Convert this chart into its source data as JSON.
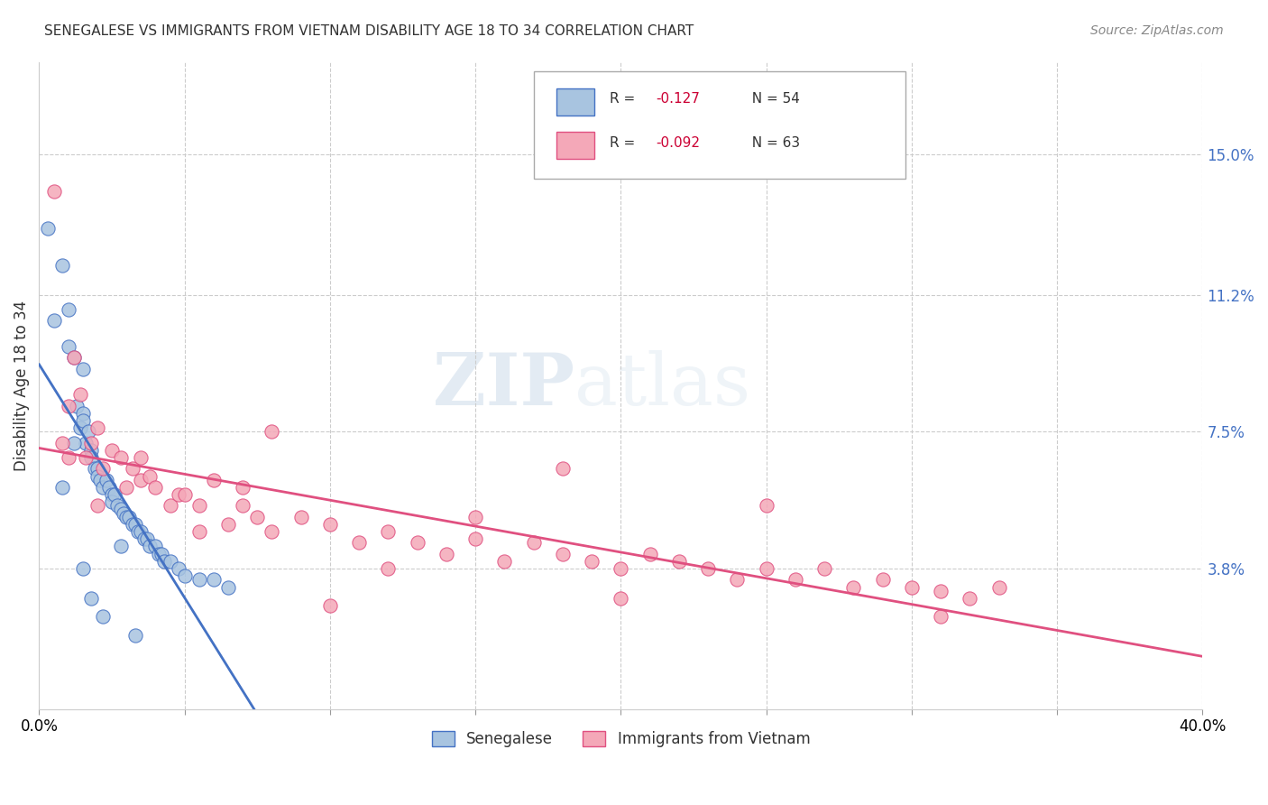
{
  "title": "SENEGALESE VS IMMIGRANTS FROM VIETNAM DISABILITY AGE 18 TO 34 CORRELATION CHART",
  "source": "Source: ZipAtlas.com",
  "ylabel": "Disability Age 18 to 34",
  "xlim": [
    0.0,
    0.4
  ],
  "ylim": [
    0.0,
    0.175
  ],
  "xtick_positions": [
    0.0,
    0.05,
    0.1,
    0.15,
    0.2,
    0.25,
    0.3,
    0.35,
    0.4
  ],
  "xticklabels": [
    "0.0%",
    "",
    "",
    "",
    "",
    "",
    "",
    "",
    "40.0%"
  ],
  "ytick_positions": [
    0.038,
    0.075,
    0.112,
    0.15
  ],
  "ytick_labels": [
    "3.8%",
    "7.5%",
    "11.2%",
    "15.0%"
  ],
  "legend_labels": [
    "Senegalese",
    "Immigrants from Vietnam"
  ],
  "legend_r1": "R =  -0.127",
  "legend_n1": "N = 54",
  "legend_r2": "R =  -0.092",
  "legend_n2": "N = 63",
  "color_blue": "#a8c4e0",
  "color_pink": "#f4a8b8",
  "line_blue": "#4472c4",
  "line_pink": "#e05080",
  "line_dash": "#b0c8e0",
  "watermark_zip": "ZIP",
  "watermark_atlas": "atlas",
  "senegalese_x": [
    0.003,
    0.005,
    0.008,
    0.01,
    0.01,
    0.012,
    0.013,
    0.014,
    0.015,
    0.015,
    0.016,
    0.017,
    0.018,
    0.018,
    0.019,
    0.02,
    0.02,
    0.021,
    0.022,
    0.023,
    0.024,
    0.025,
    0.025,
    0.026,
    0.027,
    0.028,
    0.029,
    0.03,
    0.031,
    0.032,
    0.033,
    0.034,
    0.035,
    0.036,
    0.037,
    0.038,
    0.04,
    0.041,
    0.042,
    0.043,
    0.045,
    0.048,
    0.05,
    0.055,
    0.06,
    0.065,
    0.008,
    0.012,
    0.015,
    0.018,
    0.022,
    0.028,
    0.033,
    0.015
  ],
  "senegalese_y": [
    0.13,
    0.105,
    0.12,
    0.108,
    0.098,
    0.095,
    0.082,
    0.076,
    0.08,
    0.078,
    0.072,
    0.075,
    0.07,
    0.068,
    0.065,
    0.065,
    0.063,
    0.062,
    0.06,
    0.062,
    0.06,
    0.058,
    0.056,
    0.058,
    0.055,
    0.054,
    0.053,
    0.052,
    0.052,
    0.05,
    0.05,
    0.048,
    0.048,
    0.046,
    0.046,
    0.044,
    0.044,
    0.042,
    0.042,
    0.04,
    0.04,
    0.038,
    0.036,
    0.035,
    0.035,
    0.033,
    0.06,
    0.072,
    0.038,
    0.03,
    0.025,
    0.044,
    0.02,
    0.092
  ],
  "vietnam_x": [
    0.005,
    0.008,
    0.01,
    0.012,
    0.014,
    0.016,
    0.018,
    0.02,
    0.022,
    0.025,
    0.028,
    0.03,
    0.032,
    0.035,
    0.038,
    0.04,
    0.045,
    0.048,
    0.05,
    0.055,
    0.06,
    0.065,
    0.07,
    0.075,
    0.08,
    0.09,
    0.1,
    0.11,
    0.12,
    0.13,
    0.14,
    0.15,
    0.16,
    0.17,
    0.18,
    0.19,
    0.2,
    0.21,
    0.22,
    0.23,
    0.24,
    0.25,
    0.26,
    0.27,
    0.28,
    0.29,
    0.3,
    0.31,
    0.32,
    0.33,
    0.02,
    0.035,
    0.055,
    0.08,
    0.12,
    0.18,
    0.25,
    0.01,
    0.07,
    0.2,
    0.15,
    0.1,
    0.31
  ],
  "vietnam_y": [
    0.14,
    0.072,
    0.082,
    0.095,
    0.085,
    0.068,
    0.072,
    0.076,
    0.065,
    0.07,
    0.068,
    0.06,
    0.065,
    0.062,
    0.063,
    0.06,
    0.055,
    0.058,
    0.058,
    0.055,
    0.062,
    0.05,
    0.055,
    0.052,
    0.048,
    0.052,
    0.05,
    0.045,
    0.048,
    0.045,
    0.042,
    0.046,
    0.04,
    0.045,
    0.042,
    0.04,
    0.038,
    0.042,
    0.04,
    0.038,
    0.035,
    0.038,
    0.035,
    0.038,
    0.033,
    0.035,
    0.033,
    0.032,
    0.03,
    0.033,
    0.055,
    0.068,
    0.048,
    0.075,
    0.038,
    0.065,
    0.055,
    0.068,
    0.06,
    0.03,
    0.052,
    0.028,
    0.025
  ]
}
